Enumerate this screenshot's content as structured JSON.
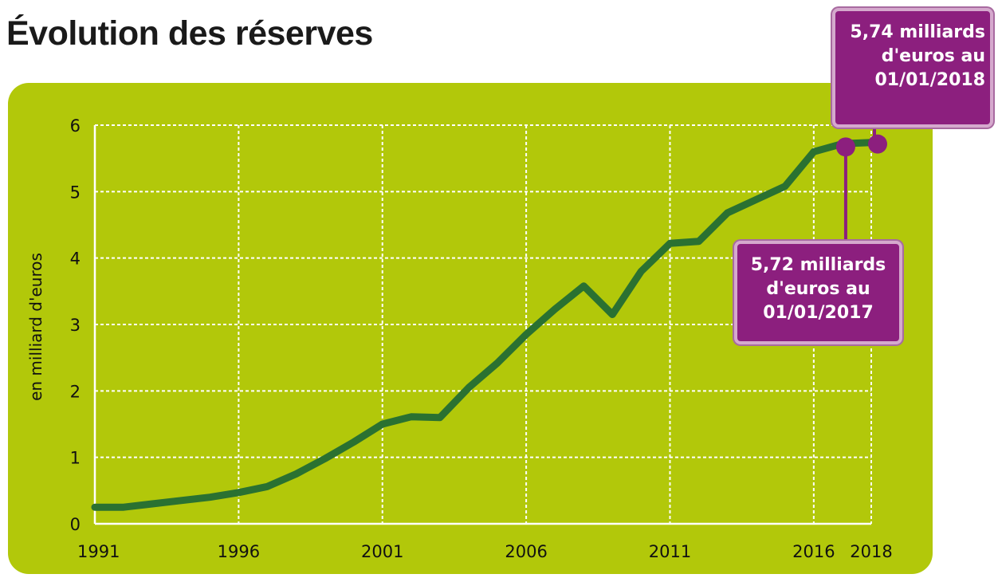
{
  "title": "Évolution des réserves",
  "chart_data": {
    "type": "line",
    "title": "Évolution des réserves",
    "xlabel": "",
    "ylabel": "en milliard d'euros",
    "xlim": [
      1991,
      2018
    ],
    "ylim": [
      0,
      6
    ],
    "x_ticks": [
      1991,
      1996,
      2001,
      2006,
      2011,
      2016,
      2018
    ],
    "y_ticks": [
      0,
      1,
      2,
      3,
      4,
      5,
      6
    ],
    "grid": true,
    "series": [
      {
        "x": [
          1991,
          1992,
          1993,
          1994,
          1995,
          1996,
          1997,
          1998,
          1999,
          2000,
          2001,
          2002,
          2003,
          2004,
          2005,
          2006,
          2007,
          2008,
          2009,
          2010,
          2011,
          2012,
          2013,
          2014,
          2015,
          2016,
          2017,
          2018
        ],
        "values": [
          0.25,
          0.25,
          0.3,
          0.35,
          0.4,
          0.47,
          0.56,
          0.75,
          0.98,
          1.23,
          1.5,
          1.61,
          1.6,
          2.05,
          2.42,
          2.85,
          3.23,
          3.58,
          3.15,
          3.8,
          4.22,
          4.25,
          4.68,
          4.88,
          5.08,
          5.6,
          5.72,
          5.74
        ],
        "color": "#2a7131"
      }
    ],
    "annotations": [
      {
        "x": 2017,
        "y": 5.72,
        "lines": [
          "5,72 milliards",
          "d'euros au",
          "01/01/2017"
        ]
      },
      {
        "x": 2018,
        "y": 5.74,
        "lines": [
          "5,74 milliards",
          "d'euros au",
          "01/01/2018"
        ]
      }
    ],
    "colors": {
      "panel": "#b2c80a",
      "line": "#2a7131",
      "marker": "#8c1f7e",
      "callout": "#8c1f7e"
    }
  }
}
